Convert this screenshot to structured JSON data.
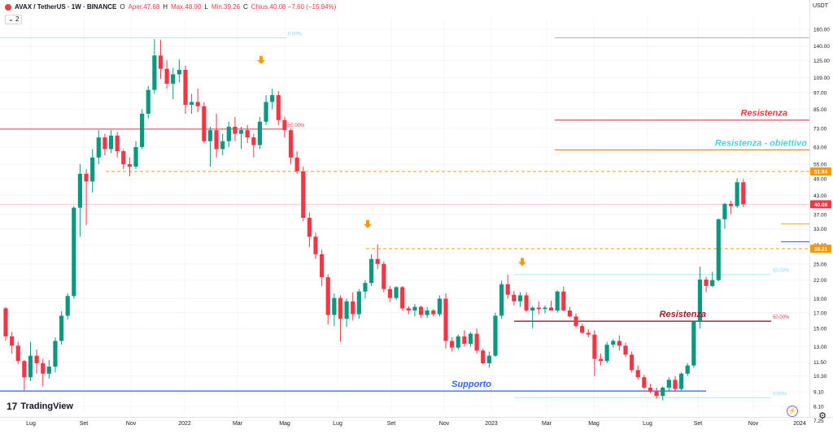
{
  "header": {
    "symbol": "AVAX / TetherUS · 1W · BINANCE",
    "ohlc": [
      {
        "label": "O",
        "value": "Aper.47.68"
      },
      {
        "label": "H",
        "value": "Max.48.90"
      },
      {
        "label": "L",
        "value": "Min.39.26"
      },
      {
        "label": "C",
        "value": "Chius.40.08 −7.60 (−15.94%)"
      }
    ],
    "indicator_count": "2",
    "currency": "USDT",
    "colors": {
      "bull": "#089981",
      "bear": "#f23645",
      "avax_red": "#e84142"
    }
  },
  "branding": {
    "logo_text": "TradingView",
    "logo_mark": "17"
  },
  "chart_data": {
    "type": "candlestick",
    "interval": "1W",
    "y_scale": "log",
    "ylim": [
      7.7,
      175
    ],
    "x_labels": [
      "Lug",
      "Set",
      "Nov",
      "2022",
      "Mar",
      "Mag",
      "Lug",
      "Set",
      "Nov",
      "2023",
      "Mar",
      "Mag",
      "Lug",
      "Set",
      "Nov",
      "2024"
    ],
    "y_ticks": [
      160,
      140,
      125,
      109,
      97,
      85,
      73,
      63,
      55,
      49,
      43,
      37,
      33,
      29,
      25,
      22,
      19,
      17,
      15,
      13,
      11.5,
      10.3,
      9.1,
      8.1,
      7.25
    ],
    "price_tags": [
      {
        "value": "51.94",
        "color": "#ff9800"
      },
      {
        "value": "40.08",
        "color": "#f23645"
      },
      {
        "value": "28.21",
        "color": "#ff9800"
      }
    ],
    "candles": [
      [
        17.6,
        17.8,
        13.6,
        14.1
      ],
      [
        14.1,
        14.6,
        12.3,
        13.1
      ],
      [
        13.1,
        13.5,
        11.3,
        11.6
      ],
      [
        11.6,
        11.7,
        9.2,
        10.2
      ],
      [
        10.2,
        13.5,
        9.9,
        12.1
      ],
      [
        12.1,
        12.7,
        10.5,
        11.4
      ],
      [
        11.4,
        11.8,
        9.5,
        10.5
      ],
      [
        10.5,
        11.7,
        10.1,
        11.1
      ],
      [
        11.1,
        14.0,
        10.6,
        13.6
      ],
      [
        13.6,
        17.2,
        13.2,
        16.6
      ],
      [
        16.6,
        19.8,
        16.1,
        19.4
      ],
      [
        19.4,
        39.5,
        19.0,
        39.0
      ],
      [
        39.0,
        55.0,
        31.0,
        51.0
      ],
      [
        51.0,
        53.0,
        34.0,
        48.0
      ],
      [
        48.0,
        62.0,
        44.0,
        58.0
      ],
      [
        58.0,
        72.0,
        55.0,
        68.0
      ],
      [
        68.0,
        70.0,
        59.0,
        62.0
      ],
      [
        62.0,
        72.0,
        60.0,
        69.0
      ],
      [
        69.0,
        71.0,
        58.0,
        61.0
      ],
      [
        61.0,
        62.0,
        53.0,
        55.0
      ],
      [
        55.0,
        58.0,
        50.0,
        54.0
      ],
      [
        54.0,
        66.0,
        53.0,
        63.0
      ],
      [
        63.0,
        85.0,
        62.0,
        82.0
      ],
      [
        82.0,
        102.0,
        79.0,
        99.0
      ],
      [
        99.0,
        148.0,
        96.0,
        130.0
      ],
      [
        130.0,
        147.0,
        108.0,
        117.0
      ],
      [
        117.0,
        125.0,
        100.0,
        104.0
      ],
      [
        104.0,
        118.0,
        92.0,
        112.0
      ],
      [
        112.0,
        126.0,
        105.0,
        116.0
      ],
      [
        116.0,
        120.0,
        82.0,
        88.0
      ],
      [
        88.0,
        96.0,
        82.0,
        90.0
      ],
      [
        90.0,
        100.0,
        83.0,
        87.0
      ],
      [
        87.0,
        90.0,
        65.0,
        66.0
      ],
      [
        66.0,
        74.0,
        54.0,
        72.0
      ],
      [
        72.0,
        82.0,
        58.0,
        62.0
      ],
      [
        62.0,
        70.0,
        59.0,
        66.0
      ],
      [
        66.0,
        77.0,
        63.0,
        74.0
      ],
      [
        74.0,
        80.0,
        66.0,
        70.0
      ],
      [
        70.0,
        74.0,
        62.0,
        72.0
      ],
      [
        72.0,
        75.0,
        65.0,
        68.0
      ],
      [
        68.0,
        70.0,
        58.0,
        64.0
      ],
      [
        64.0,
        80.0,
        62.0,
        77.0
      ],
      [
        77.0,
        95.0,
        75.0,
        90.0
      ],
      [
        90.0,
        100.0,
        85.0,
        95.0
      ],
      [
        95.0,
        98.0,
        75.0,
        78.0
      ],
      [
        78.0,
        80.0,
        68.0,
        72.0
      ],
      [
        72.0,
        73.0,
        55.0,
        58.0
      ],
      [
        58.0,
        61.0,
        51.0,
        52.0
      ],
      [
        52.0,
        54.0,
        35.0,
        36.0
      ],
      [
        36.0,
        37.5,
        28.5,
        31.0
      ],
      [
        31.0,
        32.0,
        26.0,
        27.0
      ],
      [
        27.0,
        28.0,
        21.0,
        22.5
      ],
      [
        22.5,
        23.0,
        15.5,
        16.7
      ],
      [
        16.7,
        19.8,
        15.3,
        19.1
      ],
      [
        19.1,
        19.5,
        13.5,
        16.2
      ],
      [
        16.2,
        19.0,
        15.2,
        18.6
      ],
      [
        18.6,
        20.0,
        16.0,
        16.8
      ],
      [
        16.8,
        20.5,
        16.2,
        20.1
      ],
      [
        20.1,
        22.0,
        19.0,
        21.5
      ],
      [
        21.5,
        27.0,
        21.0,
        26.0
      ],
      [
        26.0,
        29.2,
        24.0,
        25.0
      ],
      [
        25.0,
        25.5,
        20.0,
        20.5
      ],
      [
        20.5,
        21.0,
        18.5,
        19.1
      ],
      [
        19.1,
        21.0,
        18.8,
        20.8
      ],
      [
        20.8,
        21.0,
        17.3,
        17.6
      ],
      [
        17.6,
        17.9,
        16.8,
        17.3
      ],
      [
        17.3,
        18.2,
        16.5,
        17.8
      ],
      [
        17.8,
        18.0,
        16.3,
        16.7
      ],
      [
        16.7,
        17.8,
        16.3,
        17.3
      ],
      [
        17.3,
        17.5,
        16.5,
        16.8
      ],
      [
        16.8,
        19.5,
        16.5,
        19.0
      ],
      [
        19.0,
        19.8,
        12.8,
        13.6
      ],
      [
        13.6,
        14.0,
        12.5,
        12.9
      ],
      [
        12.9,
        14.3,
        12.7,
        14.1
      ],
      [
        14.1,
        14.8,
        13.0,
        13.3
      ],
      [
        13.3,
        14.6,
        13.0,
        14.4
      ],
      [
        14.4,
        15.0,
        12.3,
        12.6
      ],
      [
        12.6,
        12.8,
        11.3,
        11.4
      ],
      [
        11.4,
        12.5,
        11.0,
        12.1
      ],
      [
        12.1,
        17.0,
        12.0,
        16.6
      ],
      [
        16.6,
        21.9,
        16.2,
        21.3
      ],
      [
        21.3,
        23.0,
        19.0,
        19.6
      ],
      [
        19.6,
        20.2,
        18.0,
        18.6
      ],
      [
        18.6,
        20.0,
        17.8,
        19.5
      ],
      [
        19.5,
        20.0,
        17.1,
        17.3
      ],
      [
        17.3,
        17.9,
        15.0,
        17.7
      ],
      [
        17.7,
        18.6,
        16.8,
        17.5
      ],
      [
        17.5,
        18.0,
        16.9,
        17.7
      ],
      [
        17.7,
        18.7,
        17.3,
        17.3
      ],
      [
        17.3,
        20.3,
        17.0,
        20.1
      ],
      [
        20.1,
        20.9,
        17.2,
        17.3
      ],
      [
        17.3,
        17.8,
        16.4,
        16.5
      ],
      [
        16.5,
        16.9,
        15.1,
        15.3
      ],
      [
        15.3,
        15.6,
        14.4,
        14.5
      ],
      [
        14.5,
        14.9,
        14.0,
        14.3
      ],
      [
        14.3,
        14.8,
        10.3,
        11.8
      ],
      [
        11.8,
        12.3,
        11.2,
        11.6
      ],
      [
        11.6,
        13.5,
        11.4,
        13.2
      ],
      [
        13.2,
        13.8,
        12.9,
        13.6
      ],
      [
        13.6,
        14.2,
        12.6,
        13.1
      ],
      [
        13.1,
        13.4,
        12.0,
        12.2
      ],
      [
        12.2,
        12.5,
        10.6,
        10.8
      ],
      [
        10.8,
        11.2,
        10.0,
        10.2
      ],
      [
        10.2,
        10.4,
        9.3,
        9.4
      ],
      [
        9.4,
        9.7,
        9.0,
        9.1
      ],
      [
        9.1,
        9.4,
        8.6,
        8.8
      ],
      [
        8.8,
        9.5,
        8.5,
        9.4
      ],
      [
        9.4,
        10.2,
        9.1,
        10.0
      ],
      [
        10.0,
        10.3,
        9.1,
        9.3
      ],
      [
        9.3,
        10.6,
        9.2,
        10.5
      ],
      [
        10.5,
        11.4,
        10.3,
        11.2
      ],
      [
        11.2,
        16.0,
        11.0,
        15.9
      ],
      [
        15.9,
        24.5,
        15.0,
        22.1
      ],
      [
        22.1,
        22.6,
        20.0,
        21.0
      ],
      [
        21.0,
        23.5,
        20.8,
        22.0
      ],
      [
        22.0,
        35.8,
        21.8,
        35.6
      ],
      [
        35.6,
        40.5,
        33.0,
        40.2
      ],
      [
        40.2,
        41.2,
        37.0,
        39.5
      ],
      [
        39.5,
        49.2,
        39.0,
        47.7
      ],
      [
        47.68,
        48.9,
        39.26,
        40.08
      ]
    ],
    "lines": [
      {
        "label": "",
        "price": 149.5,
        "x0": 0,
        "x1": 352,
        "color": "#b2ebf2",
        "style": "solid",
        "width": 1
      },
      {
        "label": "",
        "price": 149.5,
        "x0": 682,
        "x1": 995,
        "color": "#b0b0b0",
        "style": "solid",
        "width": 1
      },
      {
        "label": "",
        "price": 72.6,
        "x0": 0,
        "x1": 352,
        "color": "#f23645",
        "style": "solid",
        "width": 1
      },
      {
        "label": "",
        "price": 51.94,
        "x0": 130,
        "x1": 995,
        "color": "#ff9800",
        "style": "dashed",
        "width": 1
      },
      {
        "label": "",
        "price": 40.08,
        "x0": 0,
        "x1": 995,
        "color": "#f8c8cc",
        "style": "solid",
        "width": 1
      },
      {
        "label": "",
        "price": 28.21,
        "x0": 450,
        "x1": 995,
        "color": "#ff9800",
        "style": "dashed",
        "width": 1
      },
      {
        "label": "",
        "price": 23.0,
        "x0": 632,
        "x1": 948,
        "color": "#b2ebf2",
        "style": "solid",
        "width": 1
      },
      {
        "label": "",
        "price": 15.9,
        "x0": 632,
        "x1": 948,
        "color": "#9c1c2c",
        "style": "solid",
        "width": 1.3
      },
      {
        "label": "",
        "price": 9.15,
        "x0": 0,
        "x1": 868,
        "color": "#2962ff",
        "style": "solid",
        "width": 1.3
      },
      {
        "label": "",
        "price": 8.68,
        "x0": 632,
        "x1": 948,
        "color": "#b2ebf2",
        "style": "solid",
        "width": 1
      },
      {
        "label": "",
        "price": 78.0,
        "x0": 682,
        "x1": 995,
        "color": "#e05560",
        "style": "solid",
        "width": 1.2
      },
      {
        "label": "",
        "price": 61.6,
        "x0": 682,
        "x1": 995,
        "color": "#f57c00",
        "style": "solid",
        "width": 1.2
      },
      {
        "label": "",
        "price": 34.3,
        "x0": 960,
        "x1": 995,
        "color": "#f5a623",
        "style": "solid",
        "width": 1
      },
      {
        "label": "",
        "price": 29.8,
        "x0": 960,
        "x1": 995,
        "color": "#2962ff",
        "style": "solid",
        "width": 1
      }
    ],
    "fib_labels": [
      {
        "text": "0.00%",
        "price": 149.5,
        "x": 354,
        "color": "#80deea"
      },
      {
        "text": "50.00%",
        "price": 72.6,
        "x": 354,
        "color": "#f23645"
      },
      {
        "text": "50.00%",
        "price": 23.0,
        "x": 950,
        "color": "#80deea"
      },
      {
        "text": "50.00%",
        "price": 15.9,
        "x": 950,
        "color": "#f23645"
      },
      {
        "text": "0.00%",
        "price": 8.68,
        "x": 950,
        "color": "#80deea"
      }
    ],
    "annotations": [
      {
        "text": "Resistenza",
        "price": 78.0,
        "x": 968,
        "color": "#f23645"
      },
      {
        "text": "Resistenza - obiettivo",
        "price": 61.6,
        "x": 992,
        "color": "#4dd0e1"
      },
      {
        "text": "Resistenza",
        "price": 15.9,
        "x": 868,
        "color": "#9c1c2c"
      },
      {
        "text": "Supporto",
        "price": 9.15,
        "x": 604,
        "color": "#2962ff"
      }
    ],
    "arrows": [
      {
        "x": 321,
        "price": 123.0
      },
      {
        "x": 452,
        "price": 33.6
      },
      {
        "x": 642,
        "price": 24.9
      }
    ]
  }
}
